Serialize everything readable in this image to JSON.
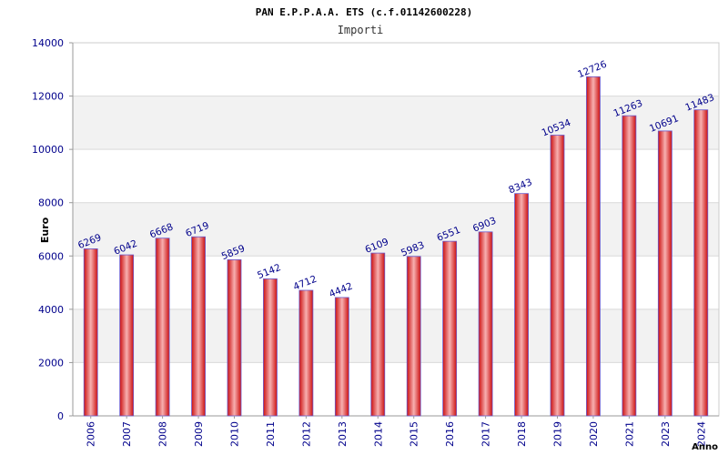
{
  "chart_data": {
    "type": "bar",
    "title": "PAN E.P.P.A.A. ETS (c.f.01142600228)",
    "subtitle": "Importi",
    "xlabel": "Anno",
    "ylabel": "Euro",
    "categories": [
      "2006",
      "2007",
      "2008",
      "2009",
      "2010",
      "2011",
      "2012",
      "2013",
      "2014",
      "2015",
      "2016",
      "2017",
      "2018",
      "2019",
      "2020",
      "2021",
      "2023",
      "2024"
    ],
    "values": [
      6269,
      6042,
      6668,
      6719,
      5859,
      5142,
      4712,
      4442,
      6109,
      5983,
      6551,
      6903,
      8343,
      10534,
      12726,
      11263,
      10691,
      11483
    ],
    "ylim": [
      0,
      14000
    ],
    "yticks": [
      0,
      2000,
      4000,
      6000,
      8000,
      10000,
      12000,
      14000
    ],
    "ytick_labels": [
      "0",
      "2000",
      "4000",
      "6000",
      "8000",
      "10000",
      "12000",
      "14000"
    ],
    "grid": true,
    "legend": "none",
    "colors": {
      "bar_edge": "#cc1010",
      "bar_center": "#f7b0b0",
      "bar_outline": "#6a5acd",
      "band": "#f2f2f2",
      "grid": "#d9d9d9",
      "tick_text": "#00008b",
      "label_text": "#00008b",
      "title_text": "#000000"
    }
  }
}
